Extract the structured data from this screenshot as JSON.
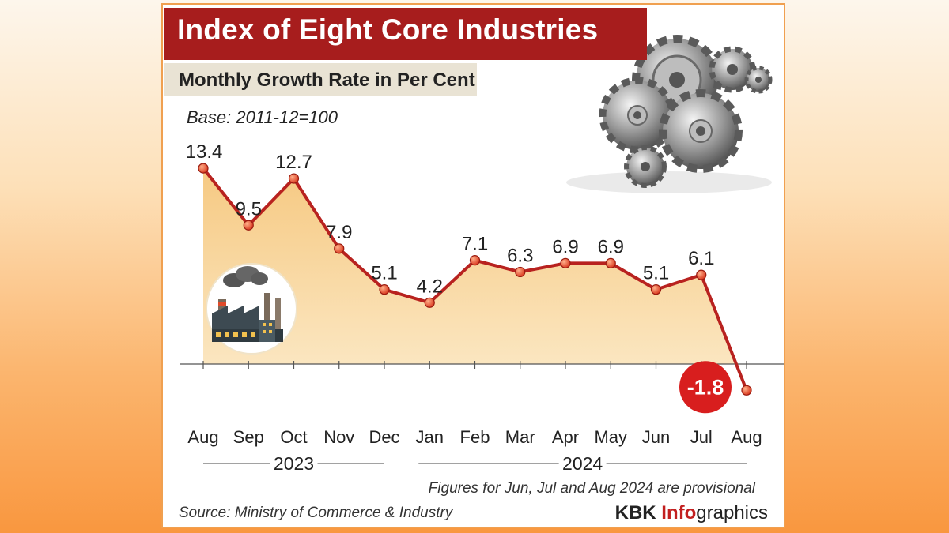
{
  "header": {
    "title": "Index of Eight Core Industries",
    "subtitle": "Monthly Growth Rate in Per Cent",
    "base": "Base: 2011-12=100"
  },
  "footer": {
    "note": "Figures for Jun, Jul and Aug 2024 are provisional",
    "source": "Source: Ministry of Commerce & Industry",
    "brand_a": "KBK",
    "brand_b": "Info",
    "brand_c": "graphics"
  },
  "colors": {
    "title_bg": "#a71d1d",
    "line": "#b8221f",
    "area": "#f8d69a",
    "point": "#e8502f",
    "negative_badge": "#d81e1e"
  },
  "icons": [
    "gears-icon",
    "factory-icon"
  ],
  "chart_data": {
    "type": "area",
    "title": "Index of Eight Core Industries",
    "ylabel": "Monthly Growth Rate in Per Cent",
    "categories": [
      "Aug",
      "Sep",
      "Oct",
      "Nov",
      "Dec",
      "Jan",
      "Feb",
      "Mar",
      "Apr",
      "May",
      "Jun",
      "Jul",
      "Aug"
    ],
    "values": [
      13.4,
      9.5,
      12.7,
      7.9,
      5.1,
      4.2,
      7.1,
      6.3,
      6.9,
      6.9,
      5.1,
      6.1,
      -1.8
    ],
    "labels": [
      "13.4",
      "9.5",
      "12.7",
      "7.9",
      "5.1",
      "4.2",
      "7.1",
      "6.3",
      "6.9",
      "6.9",
      "5.1",
      "6.1",
      "-1.8"
    ],
    "year_groups": [
      {
        "label": "2023",
        "start": 0,
        "end": 4
      },
      {
        "label": "2024",
        "start": 5,
        "end": 12
      }
    ],
    "ylim": [
      -3,
      15
    ],
    "grid": false
  }
}
